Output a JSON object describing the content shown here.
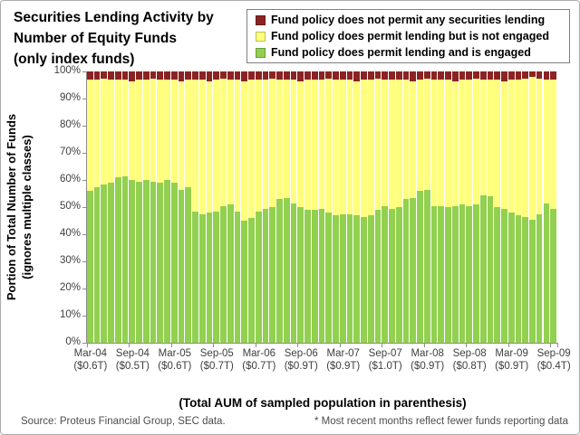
{
  "header": {
    "title_lines": [
      "Securities Lending Activity by",
      "Number of Equity Funds",
      "(only index funds)"
    ]
  },
  "legend": {
    "items": [
      {
        "label": "Fund policy does not permit any securities lending",
        "color": "#8b2323"
      },
      {
        "label": "Fund policy does permit lending but is not engaged",
        "color": "#ffff7d"
      },
      {
        "label": "Fund policy does permit lending and is engaged",
        "color": "#92d050"
      }
    ]
  },
  "chart_data": {
    "type": "bar",
    "stacked": true,
    "n_bars": 67,
    "label_every_n_bars": 6,
    "ylim": [
      0,
      100
    ],
    "grid": false,
    "legend_position": "top-right",
    "y_ticks": [
      "0%",
      "10%",
      "20%",
      "30%",
      "40%",
      "50%",
      "60%",
      "70%",
      "80%",
      "90%",
      "100%"
    ],
    "ylabel_lines": [
      "Portion of Total Number of Funds",
      "(ignores multiple classes)"
    ],
    "xlabel": "(Total AUM of sampled population in parenthesis)",
    "x_tick_labels": [
      {
        "month": "Mar-04",
        "aum": "($0.6T)"
      },
      {
        "month": "Sep-04",
        "aum": "($0.5T)"
      },
      {
        "month": "Mar-05",
        "aum": "($0.6T)"
      },
      {
        "month": "Sep-05",
        "aum": "($0.7T)"
      },
      {
        "month": "Mar-06",
        "aum": "($0.7T)"
      },
      {
        "month": "Sep-06",
        "aum": "($0.9T)"
      },
      {
        "month": "Mar-07",
        "aum": "($0.9T)"
      },
      {
        "month": "Sep-07",
        "aum": "($1.0T)"
      },
      {
        "month": "Mar-08",
        "aum": "($0.9T)"
      },
      {
        "month": "Sep-08",
        "aum": "($0.8T)"
      },
      {
        "month": "Mar-09",
        "aum": "($0.9T)"
      },
      {
        "month": "Sep-09",
        "aum": "($0.4T)"
      }
    ],
    "series": [
      {
        "name": "Fund policy does permit lending and is engaged",
        "color": "#92d050",
        "values": [
          56,
          57.5,
          58.5,
          59,
          61,
          61.5,
          60,
          59.5,
          60,
          59.5,
          59,
          60,
          59,
          56.5,
          57.5,
          48.5,
          47.5,
          48,
          48.5,
          50.5,
          51,
          48.5,
          45,
          46,
          48.5,
          49.5,
          50,
          53,
          53.5,
          51.5,
          50,
          49,
          49,
          49.5,
          48,
          47,
          47.5,
          47.5,
          47,
          46.5,
          47,
          49,
          50.5,
          49.5,
          50,
          53,
          53.5,
          56,
          56.5,
          50.5,
          50.5,
          50,
          50.5,
          51,
          50.5,
          51,
          54.5,
          54,
          50,
          49.5,
          48,
          47,
          46.5,
          45.5,
          47.5,
          51.5,
          49.5
        ]
      },
      {
        "name": "Fund policy does permit lending but is not engaged",
        "color": "#ffff7d",
        "values": [
          41,
          39.5,
          39,
          38,
          36,
          35.5,
          36.5,
          37.5,
          37,
          38,
          38,
          37,
          38,
          40,
          39.5,
          48.5,
          49.5,
          48.5,
          48.5,
          47,
          46,
          48.5,
          51.5,
          51,
          48.5,
          47.5,
          47.5,
          44,
          43.5,
          45.5,
          46.5,
          48,
          48,
          47.5,
          49.5,
          50,
          49.5,
          49.5,
          49.5,
          50.5,
          50,
          48.5,
          46.5,
          47.5,
          47,
          44,
          43,
          41,
          41,
          46.5,
          46.5,
          47,
          46,
          46,
          46.5,
          46.5,
          42.5,
          43,
          47,
          47,
          49,
          50,
          51,
          52.5,
          50,
          45.5,
          47.5
        ]
      },
      {
        "name": "Fund policy does not permit any securities lending",
        "color": "#8b2323",
        "values": [
          3,
          3,
          2.5,
          3,
          3,
          3,
          3.5,
          3,
          3,
          2.5,
          3,
          3,
          3,
          3.5,
          3,
          3,
          3,
          3.5,
          3,
          2.5,
          3,
          3,
          3.5,
          3,
          3,
          3,
          2.5,
          3,
          3,
          3,
          3.5,
          3,
          3,
          3,
          2.5,
          3,
          3,
          3,
          3.5,
          3,
          3,
          2.5,
          3,
          3,
          3,
          3,
          3.5,
          3,
          2.5,
          3,
          3,
          3,
          3.5,
          3,
          3,
          2.5,
          3,
          3,
          3,
          3.5,
          3,
          3,
          2.5,
          2,
          2.5,
          3,
          3
        ]
      }
    ]
  },
  "footer": {
    "source": "Source: Proteus Financial Group, SEC data.",
    "note": "* Most recent months reflect fewer funds reporting data"
  }
}
